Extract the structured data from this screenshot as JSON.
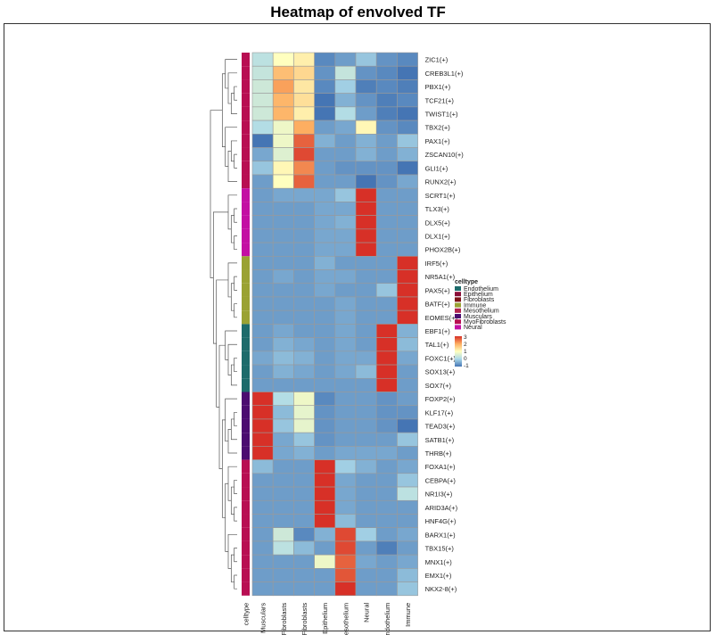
{
  "chart_data": {
    "type": "heatmap",
    "title": "Heatmap of envolved TF",
    "columns": [
      "Musculars",
      "Fibroblasts",
      "MyoFibroblasts",
      "Epithelium",
      "Mesothelium",
      "Neural",
      "Endothelium",
      "Immune"
    ],
    "rows": [
      "ZIC1(+)",
      "CREB3L1(+)",
      "PBX1(+)",
      "TCF21(+)",
      "TWIST1(+)",
      "TBX2(+)",
      "PAX1(+)",
      "ZSCAN10(+)",
      "GLI1(+)",
      "RUNX2(+)",
      "SCRT1(+)",
      "TLX3(+)",
      "DLX5(+)",
      "DLX1(+)",
      "PHOX2B(+)",
      "IRF5(+)",
      "NR5A1(+)",
      "PAX5(+)",
      "BATF(+)",
      "EOMES(+)",
      "EBF1(+)",
      "TAL1(+)",
      "FOXC1(+)",
      "SOX13(+)",
      "SOX7(+)",
      "FOXP2(+)",
      "KLF17(+)",
      "TEAD3(+)",
      "SATB1(+)",
      "THRB(+)",
      "FOXA1(+)",
      "CEBPA(+)",
      "NR1I3(+)",
      "ARID3A(+)",
      "HNF4G(+)",
      "BARX1(+)",
      "TBX15(+)",
      "MNX1(+)",
      "EMX1(+)",
      "NKX2-8(+)"
    ],
    "row_celltype": [
      "MyoFibroblasts",
      "MyoFibroblasts",
      "MyoFibroblasts",
      "MyoFibroblasts",
      "MyoFibroblasts",
      "MyoFibroblasts",
      "MyoFibroblasts",
      "MyoFibroblasts",
      "MyoFibroblasts",
      "MyoFibroblasts",
      "Neural",
      "Neural",
      "Neural",
      "Neural",
      "Neural",
      "Immune",
      "Immune",
      "Immune",
      "Immune",
      "Immune",
      "Endothelium",
      "Endothelium",
      "Endothelium",
      "Endothelium",
      "Endothelium",
      "Musculars",
      "Musculars",
      "Musculars",
      "Musculars",
      "Musculars",
      "MyoFibroblasts",
      "MyoFibroblasts",
      "MyoFibroblasts",
      "MyoFibroblasts",
      "MyoFibroblasts",
      "MyoFibroblasts",
      "MyoFibroblasts",
      "MyoFibroblasts",
      "MyoFibroblasts",
      "MyoFibroblasts"
    ],
    "values": [
      [
        0.2,
        1.0,
        1.2,
        -0.8,
        -0.6,
        -0.2,
        -0.7,
        -0.8
      ],
      [
        0.3,
        1.8,
        1.5,
        -0.7,
        0.3,
        -0.7,
        -0.8,
        -1.4
      ],
      [
        0.4,
        2.1,
        1.3,
        -0.8,
        -0.1,
        -0.9,
        -0.8,
        -0.9
      ],
      [
        0.4,
        1.9,
        1.4,
        -1.1,
        -0.4,
        -0.7,
        -0.9,
        -0.8
      ],
      [
        0.4,
        1.9,
        1.2,
        -1.2,
        0.1,
        -0.6,
        -0.9,
        -1.0
      ],
      [
        0.1,
        0.8,
        2.0,
        -0.6,
        -0.5,
        1.1,
        -0.7,
        -0.8
      ],
      [
        -1.4,
        0.8,
        2.6,
        -0.4,
        -0.6,
        -0.4,
        -0.6,
        -0.2
      ],
      [
        -0.5,
        0.6,
        2.8,
        -0.6,
        -0.6,
        -0.4,
        -0.6,
        -0.4
      ],
      [
        -0.2,
        1.1,
        2.3,
        -0.6,
        -0.7,
        -0.7,
        -0.7,
        -1.0
      ],
      [
        -0.6,
        1.0,
        2.6,
        -0.6,
        -0.6,
        -1.0,
        -0.7,
        -0.5
      ],
      [
        -0.6,
        -0.5,
        -0.5,
        -0.5,
        -0.2,
        3.0,
        -0.6,
        -0.6
      ],
      [
        -0.6,
        -0.6,
        -0.6,
        -0.5,
        -0.5,
        3.0,
        -0.6,
        -0.6
      ],
      [
        -0.6,
        -0.6,
        -0.6,
        -0.5,
        -0.4,
        3.0,
        -0.6,
        -0.6
      ],
      [
        -0.6,
        -0.6,
        -0.6,
        -0.5,
        -0.5,
        3.0,
        -0.6,
        -0.6
      ],
      [
        -0.6,
        -0.6,
        -0.6,
        -0.5,
        -0.5,
        3.0,
        -0.6,
        -0.6
      ],
      [
        -0.6,
        -0.6,
        -0.6,
        -0.4,
        -0.6,
        -0.6,
        -0.6,
        3.0
      ],
      [
        -0.6,
        -0.5,
        -0.6,
        -0.5,
        -0.5,
        -0.6,
        -0.6,
        3.0
      ],
      [
        -0.6,
        -0.6,
        -0.6,
        -0.5,
        -0.6,
        -0.6,
        -0.2,
        3.0
      ],
      [
        -0.6,
        -0.6,
        -0.6,
        -0.6,
        -0.5,
        -0.6,
        -0.6,
        3.0
      ],
      [
        -0.6,
        -0.6,
        -0.6,
        -0.6,
        -0.5,
        -0.6,
        -0.6,
        3.0
      ],
      [
        -0.6,
        -0.5,
        -0.6,
        -0.6,
        -0.5,
        -0.6,
        3.0,
        -0.4
      ],
      [
        -0.6,
        -0.4,
        -0.5,
        -0.6,
        -0.5,
        -0.6,
        3.0,
        -0.3
      ],
      [
        -0.5,
        -0.3,
        -0.4,
        -0.6,
        -0.5,
        -0.5,
        3.0,
        -0.5
      ],
      [
        -0.6,
        -0.4,
        -0.5,
        -0.6,
        -0.5,
        -0.3,
        3.0,
        -0.6
      ],
      [
        -0.6,
        -0.6,
        -0.6,
        -0.6,
        -0.6,
        -0.6,
        3.0,
        -0.6
      ],
      [
        3.0,
        0.1,
        0.8,
        -0.8,
        -0.6,
        -0.6,
        -0.7,
        -0.6
      ],
      [
        3.0,
        -0.3,
        0.7,
        -0.7,
        -0.6,
        -0.6,
        -0.7,
        -0.7
      ],
      [
        3.0,
        -0.2,
        0.7,
        -0.7,
        -0.6,
        -0.6,
        -0.7,
        -1.0
      ],
      [
        3.0,
        -0.5,
        -0.2,
        -0.7,
        -0.6,
        -0.6,
        -0.6,
        -0.2
      ],
      [
        3.0,
        -0.5,
        -0.4,
        -0.6,
        -0.5,
        -0.5,
        -0.5,
        -0.6
      ],
      [
        -0.3,
        -0.6,
        -0.6,
        3.0,
        -0.1,
        -0.4,
        -0.6,
        -0.5
      ],
      [
        -0.6,
        -0.6,
        -0.6,
        3.0,
        -0.5,
        -0.6,
        -0.6,
        -0.2
      ],
      [
        -0.6,
        -0.6,
        -0.6,
        3.0,
        -0.5,
        -0.6,
        -0.6,
        0.2
      ],
      [
        -0.6,
        -0.6,
        -0.6,
        3.0,
        -0.5,
        -0.6,
        -0.6,
        -0.6
      ],
      [
        -0.6,
        -0.6,
        -0.6,
        3.0,
        -0.3,
        -0.6,
        -0.6,
        -0.6
      ],
      [
        -0.6,
        0.4,
        -0.8,
        -0.4,
        2.8,
        -0.1,
        -0.6,
        -0.5
      ],
      [
        -0.6,
        0.2,
        -0.3,
        -0.6,
        2.8,
        -0.6,
        -0.9,
        -0.6
      ],
      [
        -0.6,
        -0.6,
        -0.6,
        0.8,
        2.6,
        -0.5,
        -0.6,
        -0.5
      ],
      [
        -0.6,
        -0.6,
        -0.6,
        -0.6,
        2.7,
        -0.6,
        -0.6,
        -0.3
      ],
      [
        -0.6,
        -0.6,
        -0.6,
        -0.6,
        3.0,
        -0.6,
        -0.6,
        -0.2
      ]
    ],
    "color_scale": {
      "stops": [
        -1,
        0,
        1,
        2,
        3
      ],
      "colors": [
        "#4575b4",
        "#abd9e9",
        "#ffffbf",
        "#fdae61",
        "#d73027"
      ],
      "tick_labels": [
        "3",
        "2",
        "1",
        "0",
        "-1"
      ]
    },
    "annotation": {
      "label": "celltype",
      "legend_title": "celltype",
      "categories": [
        "Endothelium",
        "Epithelium",
        "Fibroblasts",
        "Immune",
        "Mesothelium",
        "Musculars",
        "MyoFibroblasts",
        "Neural"
      ],
      "colors": [
        "#1d6b6b",
        "#8a0d37",
        "#7d1216",
        "#9aa233",
        "#b2244f",
        "#4b0c70",
        "#b80e52",
        "#c30fa3"
      ]
    },
    "col_dendrogram": [
      [
        1,
        2
      ],
      [
        0,
        9
      ],
      [
        6,
        7
      ],
      [
        5,
        11
      ],
      [
        4,
        12
      ],
      [
        3,
        13
      ],
      [
        10,
        14
      ]
    ],
    "row_dendrogram": [
      [
        2,
        3
      ],
      [
        40,
        4
      ],
      [
        1,
        41
      ],
      [
        0,
        42
      ],
      [
        7,
        8
      ],
      [
        6,
        44
      ],
      [
        9,
        45
      ],
      [
        5,
        46
      ],
      [
        43,
        47
      ],
      [
        11,
        12
      ],
      [
        13,
        14
      ],
      [
        49,
        50
      ],
      [
        10,
        51
      ],
      [
        16,
        17
      ],
      [
        18,
        19
      ],
      [
        53,
        54
      ],
      [
        15,
        55
      ],
      [
        22,
        23
      ],
      [
        57,
        24
      ],
      [
        21,
        58
      ],
      [
        20,
        59
      ],
      [
        26,
        27
      ],
      [
        61,
        28
      ],
      [
        62,
        29
      ],
      [
        25,
        63
      ],
      [
        31,
        32
      ],
      [
        33,
        34
      ],
      [
        65,
        66
      ],
      [
        30,
        67
      ],
      [
        36,
        37
      ],
      [
        38,
        39
      ],
      [
        69,
        70
      ],
      [
        35,
        71
      ],
      [
        68,
        72
      ],
      [
        64,
        73
      ],
      [
        60,
        74
      ],
      [
        56,
        75
      ],
      [
        52,
        76
      ],
      [
        48,
        77
      ]
    ]
  }
}
